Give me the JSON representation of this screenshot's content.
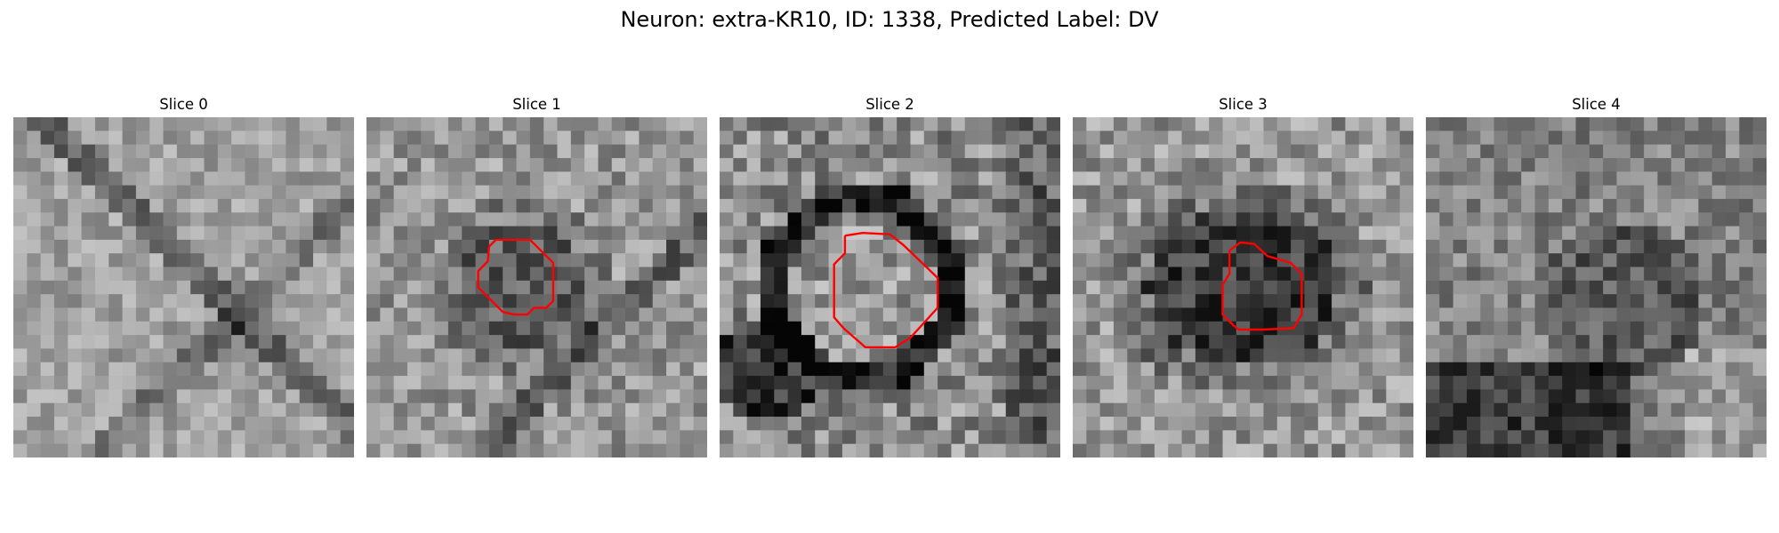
{
  "figure": {
    "title": "Neuron: extra-KR10, ID: 1338, Predicted Label: DV"
  },
  "panels": [
    {
      "title": "Slice 0",
      "contour": false,
      "seed": 11,
      "base": 160,
      "spread": 70,
      "feature": "diagonal-streaks"
    },
    {
      "title": "Slice 1",
      "contour": true,
      "seed": 23,
      "base": 150,
      "spread": 90,
      "feature": "dark-ring-small"
    },
    {
      "title": "Slice 2",
      "contour": true,
      "seed": 37,
      "base": 140,
      "spread": 110,
      "feature": "dark-ring-large"
    },
    {
      "title": "Slice 3",
      "contour": true,
      "seed": 41,
      "base": 150,
      "spread": 95,
      "feature": "dark-blob-center"
    },
    {
      "title": "Slice 4",
      "contour": false,
      "seed": 53,
      "base": 130,
      "spread": 85,
      "feature": "dark-lower"
    }
  ],
  "colors": {
    "contour": "#ff0000",
    "background": "#ffffff"
  }
}
